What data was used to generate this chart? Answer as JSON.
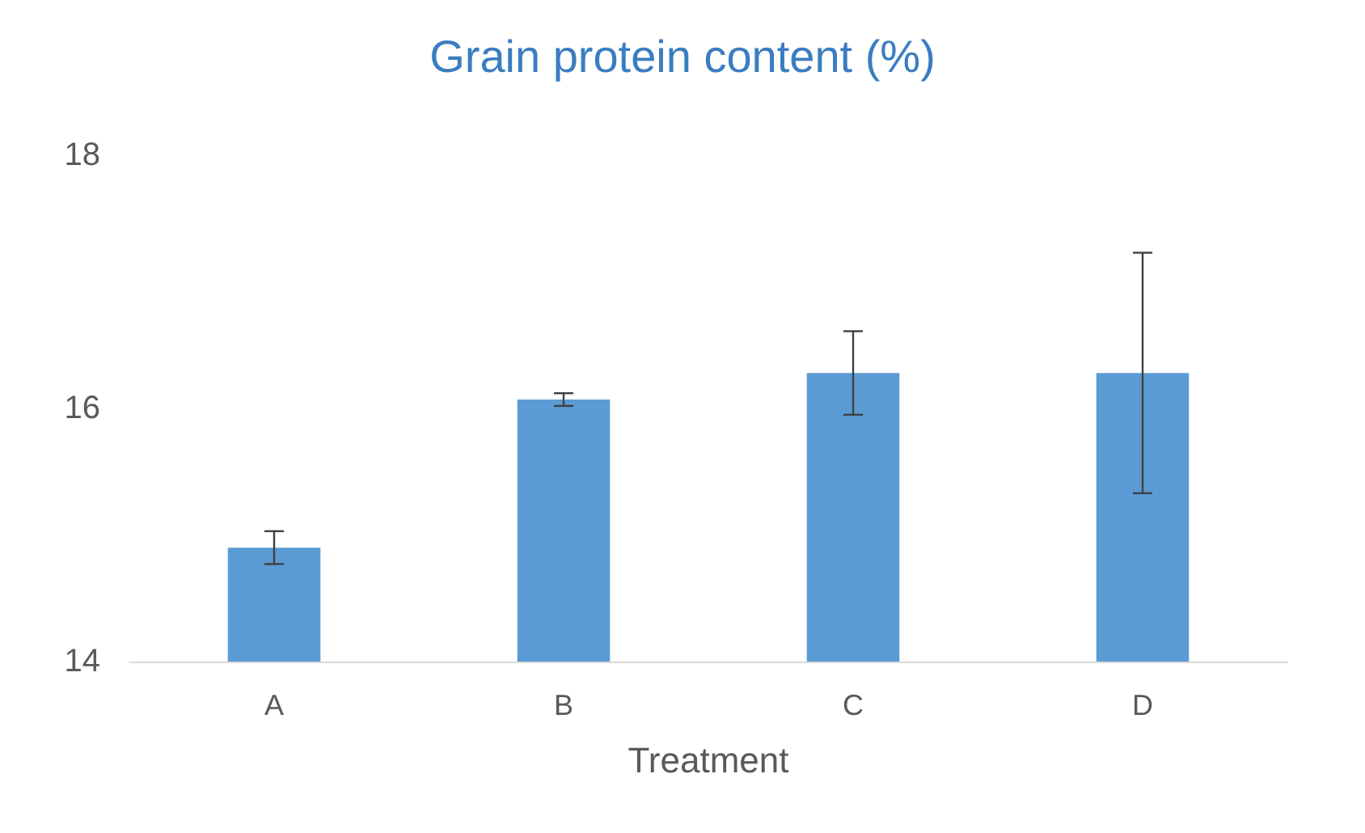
{
  "chart_data": {
    "type": "bar",
    "title": "Grain protein content (%)",
    "xlabel": "Treatment",
    "categories": [
      "A",
      "B",
      "C",
      "D"
    ],
    "values": [
      14.9,
      16.07,
      16.28,
      16.28
    ],
    "errors": [
      0.13,
      0.05,
      0.33,
      0.95
    ],
    "color": "#5b9bd5",
    "ylim": [
      14,
      18
    ],
    "yticks": [
      14,
      16,
      18
    ],
    "grid": false
  }
}
